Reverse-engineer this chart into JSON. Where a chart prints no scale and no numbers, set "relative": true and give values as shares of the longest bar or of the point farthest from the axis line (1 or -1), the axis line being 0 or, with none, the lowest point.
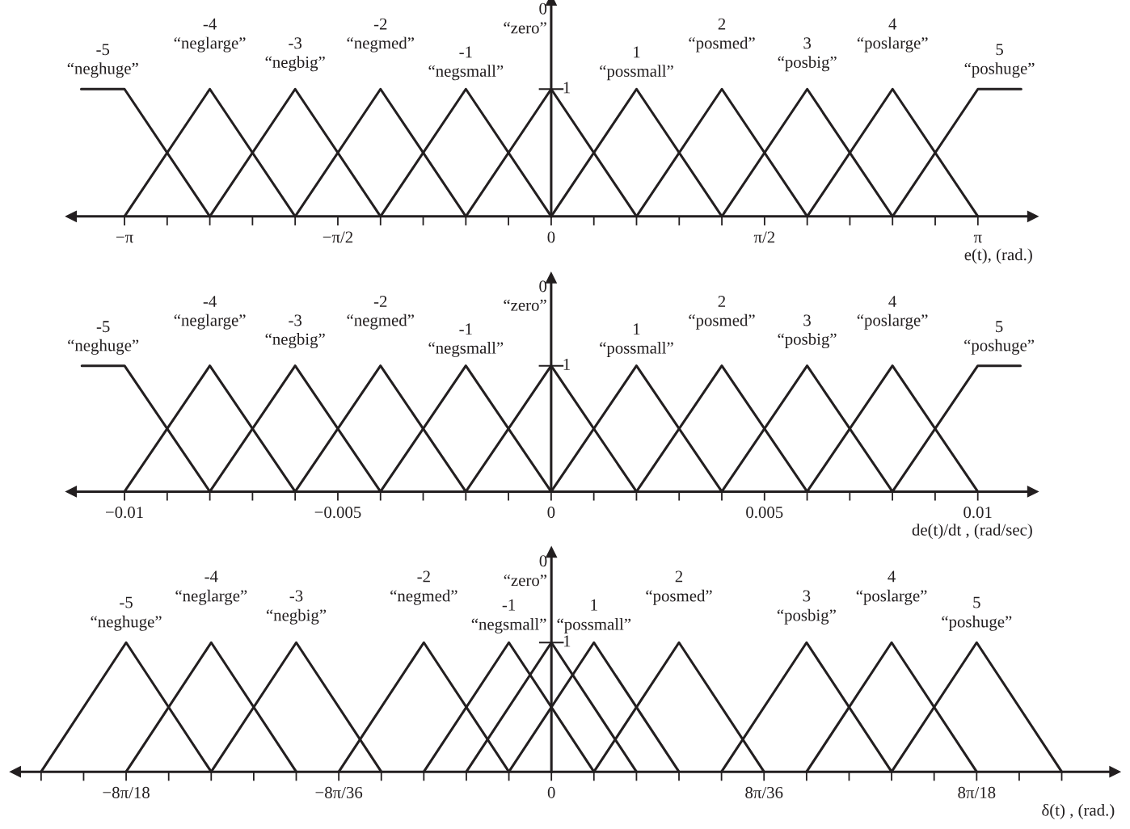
{
  "chart_data": [
    {
      "type": "line",
      "relative": true,
      "xlabel": "e(t), (rad.)",
      "xlim": [
        -3.534,
        3.546
      ],
      "xticks": [
        {
          "value": -3.1416,
          "label": "−π"
        },
        {
          "value": -2.8274,
          "label": null
        },
        {
          "value": -2.5133,
          "label": null
        },
        {
          "value": -2.1991,
          "label": null
        },
        {
          "value": -1.885,
          "label": null
        },
        {
          "value": -1.5708,
          "label": "−π/2"
        },
        {
          "value": -1.2566,
          "label": null
        },
        {
          "value": -0.9425,
          "label": null
        },
        {
          "value": -0.6283,
          "label": null
        },
        {
          "value": -0.3142,
          "label": null
        },
        0,
        {
          "value": 0.3142,
          "label": null
        },
        {
          "value": 0.6283,
          "label": null
        },
        {
          "value": 0.9425,
          "label": null
        },
        {
          "value": 1.2566,
          "label": null
        },
        {
          "value": 1.5708,
          "label": "π/2"
        },
        {
          "value": 1.885,
          "label": null
        },
        {
          "value": 2.1991,
          "label": null
        },
        {
          "value": 2.5133,
          "label": null
        },
        {
          "value": 2.8274,
          "label": null
        },
        {
          "value": 3.1416,
          "label": "π"
        }
      ],
      "series": [
        {
          "color": "#231f20",
          "x": [
            -3.46,
            -3.1416,
            -2.5133
          ],
          "values": [
            1,
            1,
            0
          ]
        },
        {
          "color": "#231f20",
          "x": [
            -3.1416,
            -2.5133,
            -1.885
          ],
          "values": [
            0,
            1,
            0
          ]
        },
        {
          "color": "#231f20",
          "x": [
            -2.5133,
            -1.885,
            -1.2566
          ],
          "values": [
            0,
            1,
            0
          ]
        },
        {
          "color": "#231f20",
          "x": [
            -1.885,
            -1.2566,
            -0.6283
          ],
          "values": [
            0,
            1,
            0
          ]
        },
        {
          "color": "#231f20",
          "x": [
            -1.2566,
            -0.6283,
            0
          ],
          "values": [
            0,
            1,
            0
          ]
        },
        {
          "color": "#231f20",
          "x": [
            -0.6283,
            0,
            0.6283
          ],
          "values": [
            0,
            1,
            0
          ]
        },
        {
          "color": "#231f20",
          "x": [
            0,
            0.6283,
            1.2566
          ],
          "values": [
            0,
            1,
            0
          ]
        },
        {
          "color": "#231f20",
          "x": [
            0.6283,
            1.2566,
            1.885
          ],
          "values": [
            0,
            1,
            0
          ]
        },
        {
          "color": "#231f20",
          "x": [
            1.2566,
            1.885,
            2.5133
          ],
          "values": [
            0,
            1,
            0
          ]
        },
        {
          "color": "#231f20",
          "x": [
            1.885,
            2.5133,
            3.1416
          ],
          "values": [
            0,
            1,
            0
          ]
        },
        {
          "color": "#231f20",
          "x": [
            2.5133,
            3.1416,
            3.46
          ],
          "values": [
            0,
            1,
            1
          ]
        }
      ],
      "annotations": [
        "-5",
        "“neghuge”",
        "-4",
        "“neglarge”",
        "-3",
        "“negbig”",
        "-2",
        "“negmed”",
        "-1",
        "“negsmall”",
        "0",
        "“zero”",
        "1",
        "“possmall”",
        "2",
        "“posmed”",
        "3",
        "“posbig”",
        "4",
        "“poslarge”",
        "5",
        "“poshuge”",
        "1"
      ]
    },
    {
      "type": "line",
      "relative": true,
      "xlabel": "de(t)/dt , (rad/sec)",
      "xlim": [
        -0.01125,
        0.01129
      ],
      "xticks": [
        {
          "value": -0.01,
          "label": "−0.01"
        },
        {
          "value": -0.009,
          "label": null
        },
        {
          "value": -0.008,
          "label": null
        },
        {
          "value": -0.007,
          "label": null
        },
        {
          "value": -0.006,
          "label": null
        },
        {
          "value": -0.005,
          "label": "−0.005"
        },
        {
          "value": -0.004,
          "label": null
        },
        {
          "value": -0.003,
          "label": null
        },
        {
          "value": -0.002,
          "label": null
        },
        {
          "value": -0.001,
          "label": null
        },
        0,
        {
          "value": 0.001,
          "label": null
        },
        {
          "value": 0.002,
          "label": null
        },
        {
          "value": 0.003,
          "label": null
        },
        {
          "value": 0.004,
          "label": null
        },
        0.005,
        {
          "value": 0.006,
          "label": null
        },
        {
          "value": 0.007,
          "label": null
        },
        {
          "value": 0.008,
          "label": null
        },
        {
          "value": 0.009,
          "label": null
        },
        0.01
      ],
      "series": [
        {
          "color": "#231f20",
          "x": [
            -0.011,
            -0.01,
            -0.008
          ],
          "values": [
            1,
            1,
            0
          ]
        },
        {
          "color": "#231f20",
          "x": [
            -0.01,
            -0.008,
            -0.006
          ],
          "values": [
            0,
            1,
            0
          ]
        },
        {
          "color": "#231f20",
          "x": [
            -0.008,
            -0.006,
            -0.004
          ],
          "values": [
            0,
            1,
            0
          ]
        },
        {
          "color": "#231f20",
          "x": [
            -0.006,
            -0.004,
            -0.002
          ],
          "values": [
            0,
            1,
            0
          ]
        },
        {
          "color": "#231f20",
          "x": [
            -0.004,
            -0.002,
            0
          ],
          "values": [
            0,
            1,
            0
          ]
        },
        {
          "color": "#231f20",
          "x": [
            -0.002,
            0,
            0.002
          ],
          "values": [
            0,
            1,
            0
          ]
        },
        {
          "color": "#231f20",
          "x": [
            0,
            0.002,
            0.004
          ],
          "values": [
            0,
            1,
            0
          ]
        },
        {
          "color": "#231f20",
          "x": [
            0.002,
            0.004,
            0.006
          ],
          "values": [
            0,
            1,
            0
          ]
        },
        {
          "color": "#231f20",
          "x": [
            0.004,
            0.006,
            0.008
          ],
          "values": [
            0,
            1,
            0
          ]
        },
        {
          "color": "#231f20",
          "x": [
            0.006,
            0.008,
            0.01
          ],
          "values": [
            0,
            1,
            0
          ]
        },
        {
          "color": "#231f20",
          "x": [
            0.008,
            0.01,
            0.011
          ],
          "values": [
            0,
            1,
            1
          ]
        }
      ],
      "annotations": [
        "-5",
        "“neghuge”",
        "-4",
        "“neglarge”",
        "-3",
        "“negbig”",
        "-2",
        "“negmed”",
        "-1",
        "“negsmall”",
        "0",
        "“zero”",
        "1",
        "“possmall”",
        "2",
        "“posmed”",
        "3",
        "“posbig”",
        "4",
        "“poslarge”",
        "5",
        "“poshuge”",
        "1"
      ]
    },
    {
      "type": "line",
      "relative": true,
      "xlabel": "δ(t) , (rad.)",
      "xlim": [
        -1.76,
        1.85
      ],
      "xticks": [
        {
          "value": -1.6755,
          "label": null
        },
        {
          "value": -1.5359,
          "label": null
        },
        {
          "value": -1.3963,
          "label": "−8π/18"
        },
        {
          "value": -1.2566,
          "label": null
        },
        {
          "value": -1.117,
          "label": null
        },
        {
          "value": -0.9774,
          "label": null
        },
        {
          "value": -0.8378,
          "label": null
        },
        {
          "value": -0.6981,
          "label": "−8π/36"
        },
        {
          "value": -0.5585,
          "label": null
        },
        {
          "value": -0.4189,
          "label": null
        },
        {
          "value": -0.2793,
          "label": null
        },
        {
          "value": -0.1396,
          "label": null
        },
        0,
        {
          "value": 0.1396,
          "label": null
        },
        {
          "value": 0.2793,
          "label": null
        },
        {
          "value": 0.4189,
          "label": null
        },
        {
          "value": 0.5585,
          "label": null
        },
        {
          "value": 0.6981,
          "label": "8π/36"
        },
        {
          "value": 0.8378,
          "label": null
        },
        {
          "value": 0.9774,
          "label": null
        },
        {
          "value": 1.117,
          "label": null
        },
        {
          "value": 1.2566,
          "label": null
        },
        {
          "value": 1.3963,
          "label": "8π/18"
        },
        {
          "value": 1.5359,
          "label": null
        },
        {
          "value": 1.6755,
          "label": null
        }
      ],
      "series": [
        {
          "color": "#231f20",
          "x": [
            -1.6755,
            -1.3963,
            -1.117
          ],
          "values": [
            0,
            1,
            0
          ]
        },
        {
          "color": "#231f20",
          "x": [
            -1.3963,
            -1.117,
            -0.8378
          ],
          "values": [
            0,
            1,
            0
          ]
        },
        {
          "color": "#231f20",
          "x": [
            -1.117,
            -0.8378,
            -0.5585
          ],
          "values": [
            0,
            1,
            0
          ]
        },
        {
          "color": "#231f20",
          "x": [
            -0.6981,
            -0.4189,
            -0.1396
          ],
          "values": [
            0,
            1,
            0
          ]
        },
        {
          "color": "#231f20",
          "x": [
            -0.4189,
            -0.1396,
            0.1396
          ],
          "values": [
            0,
            1,
            0
          ]
        },
        {
          "color": "#231f20",
          "x": [
            -0.2793,
            0,
            0.2793
          ],
          "values": [
            0,
            1,
            0
          ]
        },
        {
          "color": "#231f20",
          "x": [
            -0.1396,
            0.1396,
            0.4189
          ],
          "values": [
            0,
            1,
            0
          ]
        },
        {
          "color": "#231f20",
          "x": [
            0.1396,
            0.4189,
            0.6981
          ],
          "values": [
            0,
            1,
            0
          ]
        },
        {
          "color": "#231f20",
          "x": [
            0.5585,
            0.8378,
            1.117
          ],
          "values": [
            0,
            1,
            0
          ]
        },
        {
          "color": "#231f20",
          "x": [
            0.8378,
            1.117,
            1.3963
          ],
          "values": [
            0,
            1,
            0
          ]
        },
        {
          "color": "#231f20",
          "x": [
            1.117,
            1.3963,
            1.6755
          ],
          "values": [
            0,
            1,
            0
          ]
        }
      ],
      "annotations": [
        "-5",
        "“neghuge”",
        "-4",
        "“neglarge”",
        "-3",
        "“negbig”",
        "-2",
        "“negmed”",
        "-1",
        "“negsmall”",
        "0",
        "“zero”",
        "1",
        "“possmall”",
        "2",
        "“posmed”",
        "3",
        "“posbig”",
        "4",
        "“poslarge”",
        "5",
        "“poshuge”",
        "1"
      ]
    }
  ]
}
